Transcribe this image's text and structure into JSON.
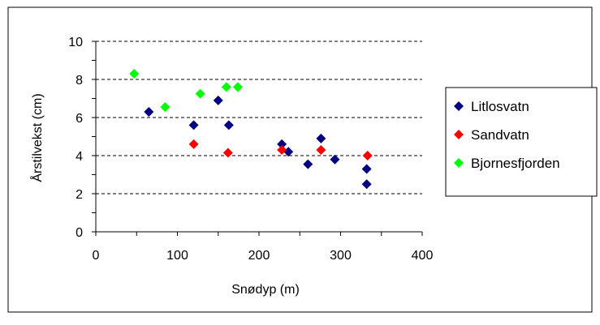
{
  "chart_data": {
    "type": "scatter",
    "title": "",
    "xlabel": "Snødyp (m)",
    "ylabel": "Årstilvekst (cm)",
    "xlim": [
      0,
      400
    ],
    "ylim": [
      0,
      10
    ],
    "x_ticks": [
      "0",
      "100",
      "200",
      "300",
      "400"
    ],
    "y_ticks": [
      "0",
      "2",
      "4",
      "6",
      "8",
      "10"
    ],
    "grid": "horizontal dashed",
    "legend_position": "right",
    "series": [
      {
        "name": "Litlosvatn",
        "color": "#000080",
        "marker": "diamond",
        "points": [
          {
            "x": 65,
            "y": 6.3
          },
          {
            "x": 120,
            "y": 5.6
          },
          {
            "x": 150,
            "y": 6.9
          },
          {
            "x": 163,
            "y": 5.6
          },
          {
            "x": 228,
            "y": 4.6
          },
          {
            "x": 236,
            "y": 4.2
          },
          {
            "x": 260,
            "y": 3.55
          },
          {
            "x": 276,
            "y": 4.9
          },
          {
            "x": 293,
            "y": 3.8
          },
          {
            "x": 332,
            "y": 3.3
          },
          {
            "x": 332,
            "y": 2.5
          }
        ]
      },
      {
        "name": "Sandvatn",
        "color": "#ff0000",
        "marker": "diamond",
        "points": [
          {
            "x": 120,
            "y": 4.6
          },
          {
            "x": 162,
            "y": 4.15
          },
          {
            "x": 228,
            "y": 4.3
          },
          {
            "x": 276,
            "y": 4.3
          },
          {
            "x": 333,
            "y": 4.0
          }
        ]
      },
      {
        "name": "Bjornesfjorden",
        "color": "#00ff00",
        "marker": "diamond",
        "points": [
          {
            "x": 47,
            "y": 8.3
          },
          {
            "x": 85,
            "y": 6.55
          },
          {
            "x": 128,
            "y": 7.25
          },
          {
            "x": 160,
            "y": 7.6
          },
          {
            "x": 174,
            "y": 7.6
          }
        ]
      }
    ]
  }
}
